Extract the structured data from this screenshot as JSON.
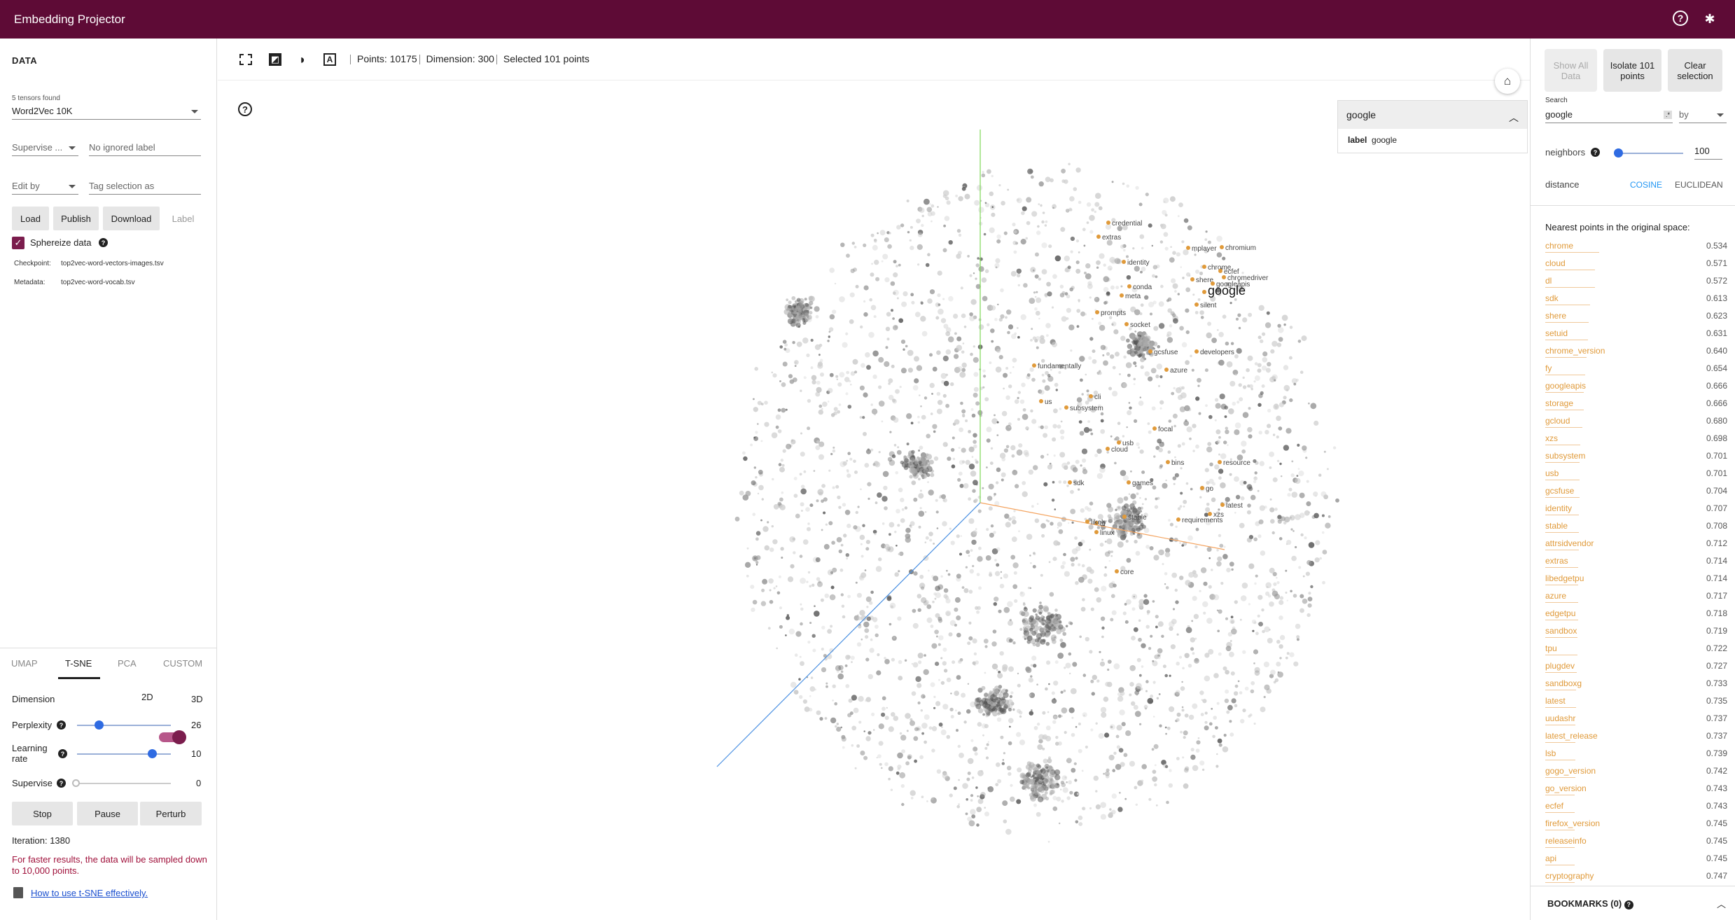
{
  "app": {
    "title": "Embedding Projector"
  },
  "left": {
    "header": "DATA",
    "tensors_found": "5 tensors found",
    "tensor": "Word2Vec 10K",
    "supervise_label": "Supervise ...",
    "ignored_label": "No ignored label",
    "edit_by": "Edit by",
    "tag_placeholder": "Tag selection as",
    "buttons": {
      "load": "Load",
      "publish": "Publish",
      "download": "Download",
      "label": "Label"
    },
    "sphereize": "Sphereize data",
    "checkpoint_label": "Checkpoint:",
    "checkpoint": "top2vec-word-vectors-images.tsv",
    "metadata_label": "Metadata:",
    "metadata": "top2vec-word-vocab.tsv",
    "tabs": [
      "UMAP",
      "T-SNE",
      "PCA",
      "CUSTOM"
    ],
    "active_tab": "T-SNE",
    "dimension_label": "Dimension",
    "dim_2d": "2D",
    "dim_3d": "3D",
    "perplexity_label": "Perplexity",
    "perplexity": "26",
    "learning_rate_label": "Learning rate",
    "learning_rate": "10",
    "supervise_slider_label": "Supervise",
    "supervise_value": "0",
    "controls": {
      "stop": "Stop",
      "pause": "Pause",
      "perturb": "Perturb"
    },
    "iteration": "Iteration: 1380",
    "warning": "For faster results, the data will be sampled down to 10,000 points.",
    "howto": "How to use t-SNE effectively."
  },
  "toolbar": {
    "points": "Points: 10175",
    "dimension": "Dimension: 300",
    "selected": "Selected 101 points"
  },
  "info_card": {
    "title": "google",
    "key": "label",
    "value": "google"
  },
  "plot_labels": [
    {
      "t": "credential"
    },
    {
      "t": "extras"
    },
    {
      "t": "mplayer"
    },
    {
      "t": "chromium"
    },
    {
      "t": "identity"
    },
    {
      "t": "chrome"
    },
    {
      "t": "ecfef"
    },
    {
      "t": "chromedriver"
    },
    {
      "t": "shere"
    },
    {
      "t": "googleapis"
    },
    {
      "t": "conda"
    },
    {
      "t": "google"
    },
    {
      "t": "meta"
    },
    {
      "t": "silent"
    },
    {
      "t": "prompts"
    },
    {
      "t": "socket"
    },
    {
      "t": "gcsfuse"
    },
    {
      "t": "developers"
    },
    {
      "t": "fundamentally"
    },
    {
      "t": "azure"
    },
    {
      "t": "cli"
    },
    {
      "t": "us"
    },
    {
      "t": "subsystem"
    },
    {
      "t": "focal"
    },
    {
      "t": "usb"
    },
    {
      "t": "cloud"
    },
    {
      "t": "bins"
    },
    {
      "t": "resource"
    },
    {
      "t": "sdk"
    },
    {
      "t": "games"
    },
    {
      "t": "go"
    },
    {
      "t": "latest"
    },
    {
      "t": "stable"
    },
    {
      "t": "requirements"
    },
    {
      "t": "xzs"
    },
    {
      "t": "linux"
    },
    {
      "t": "core"
    },
    {
      "t": "dl"
    },
    {
      "t": "likely"
    }
  ],
  "right": {
    "show_all": "Show All Data",
    "isolate": "Isolate 101 points",
    "clear": "Clear selection",
    "search_label": "Search",
    "search_value": "google",
    "by_label": "by",
    "neighbors_label": "neighbors",
    "neighbors_value": "100",
    "distance_label": "distance",
    "cosine": "COSINE",
    "euclidean": "EUCLIDEAN",
    "nearest_title": "Nearest points in the original space:",
    "nearest": [
      {
        "w": "chrome",
        "v": "0.534"
      },
      {
        "w": "cloud",
        "v": "0.571"
      },
      {
        "w": "dl",
        "v": "0.572"
      },
      {
        "w": "sdk",
        "v": "0.613"
      },
      {
        "w": "shere",
        "v": "0.623"
      },
      {
        "w": "setuid",
        "v": "0.631"
      },
      {
        "w": "chrome_version",
        "v": "0.640"
      },
      {
        "w": "fy",
        "v": "0.654"
      },
      {
        "w": "googleapis",
        "v": "0.666"
      },
      {
        "w": "storage",
        "v": "0.666"
      },
      {
        "w": "gcloud",
        "v": "0.680"
      },
      {
        "w": "xzs",
        "v": "0.698"
      },
      {
        "w": "subsystem",
        "v": "0.701"
      },
      {
        "w": "usb",
        "v": "0.701"
      },
      {
        "w": "gcsfuse",
        "v": "0.704"
      },
      {
        "w": "identity",
        "v": "0.707"
      },
      {
        "w": "stable",
        "v": "0.708"
      },
      {
        "w": "attrsidvendor",
        "v": "0.712"
      },
      {
        "w": "extras",
        "v": "0.714"
      },
      {
        "w": "libedgetpu",
        "v": "0.714"
      },
      {
        "w": "azure",
        "v": "0.717"
      },
      {
        "w": "edgetpu",
        "v": "0.718"
      },
      {
        "w": "sandbox",
        "v": "0.719"
      },
      {
        "w": "tpu",
        "v": "0.722"
      },
      {
        "w": "plugdev",
        "v": "0.727"
      },
      {
        "w": "sandboxg",
        "v": "0.733"
      },
      {
        "w": "latest",
        "v": "0.735"
      },
      {
        "w": "uudashr",
        "v": "0.737"
      },
      {
        "w": "latest_release",
        "v": "0.737"
      },
      {
        "w": "lsb",
        "v": "0.739"
      },
      {
        "w": "gogo_version",
        "v": "0.742"
      },
      {
        "w": "go_version",
        "v": "0.743"
      },
      {
        "w": "ecfef",
        "v": "0.743"
      },
      {
        "w": "firefox_version",
        "v": "0.745"
      },
      {
        "w": "releaseinfo",
        "v": "0.745"
      },
      {
        "w": "api",
        "v": "0.745"
      },
      {
        "w": "cryptography",
        "v": "0.747"
      }
    ],
    "bookmarks": "BOOKMARKS (0)"
  },
  "colors": {
    "brand": "#5e0b36",
    "accent": "#7b1d4d",
    "neighbor": "#e09a3a",
    "cosine": "#2196f3"
  }
}
